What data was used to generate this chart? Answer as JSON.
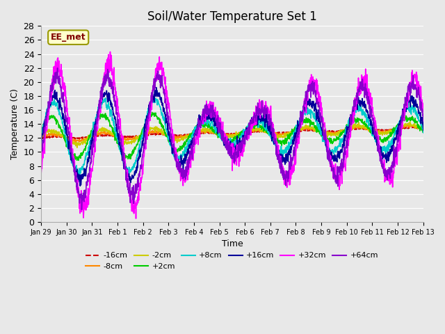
{
  "title": "Soil/Water Temperature Set 1",
  "xlabel": "Time",
  "ylabel": "Temperature (C)",
  "ylim": [
    0,
    28
  ],
  "yticks": [
    0,
    2,
    4,
    6,
    8,
    10,
    12,
    14,
    16,
    18,
    20,
    22,
    24,
    26,
    28
  ],
  "background_color": "#e8e8e8",
  "plot_bg_color": "#e8e8e8",
  "annotation_text": "EE_met",
  "annotation_box_color": "#ffffcc",
  "annotation_text_color": "#800000",
  "series_colors": {
    "-16cm": "#cc0000",
    "-8cm": "#ff8800",
    "-2cm": "#cccc00",
    "+2cm": "#00cc00",
    "+8cm": "#00cccc",
    "+16cm": "#000099",
    "+32cm": "#ff00ff",
    "+64cm": "#8800cc"
  },
  "series_linestyles": {
    "-16cm": "--",
    "-8cm": "-",
    "-2cm": "-",
    "+2cm": "-",
    "+8cm": "-",
    "+16cm": "-",
    "+32cm": "-",
    "+64cm": "-"
  },
  "xtick_labels": [
    "Jan 29",
    "Jan 30",
    "Jan 31",
    "Feb 1",
    "Feb 2",
    "Feb 3",
    "Feb 4",
    "Feb 5",
    "Feb 6",
    "Feb 7",
    "Feb 8",
    "Feb 9",
    "Feb 10",
    "Feb 11",
    "Feb 12",
    "Feb 13"
  ],
  "legend_entries": [
    "-16cm",
    "-8cm",
    "-2cm",
    "+2cm",
    "+8cm",
    "+16cm",
    "+32cm",
    "+64cm"
  ]
}
